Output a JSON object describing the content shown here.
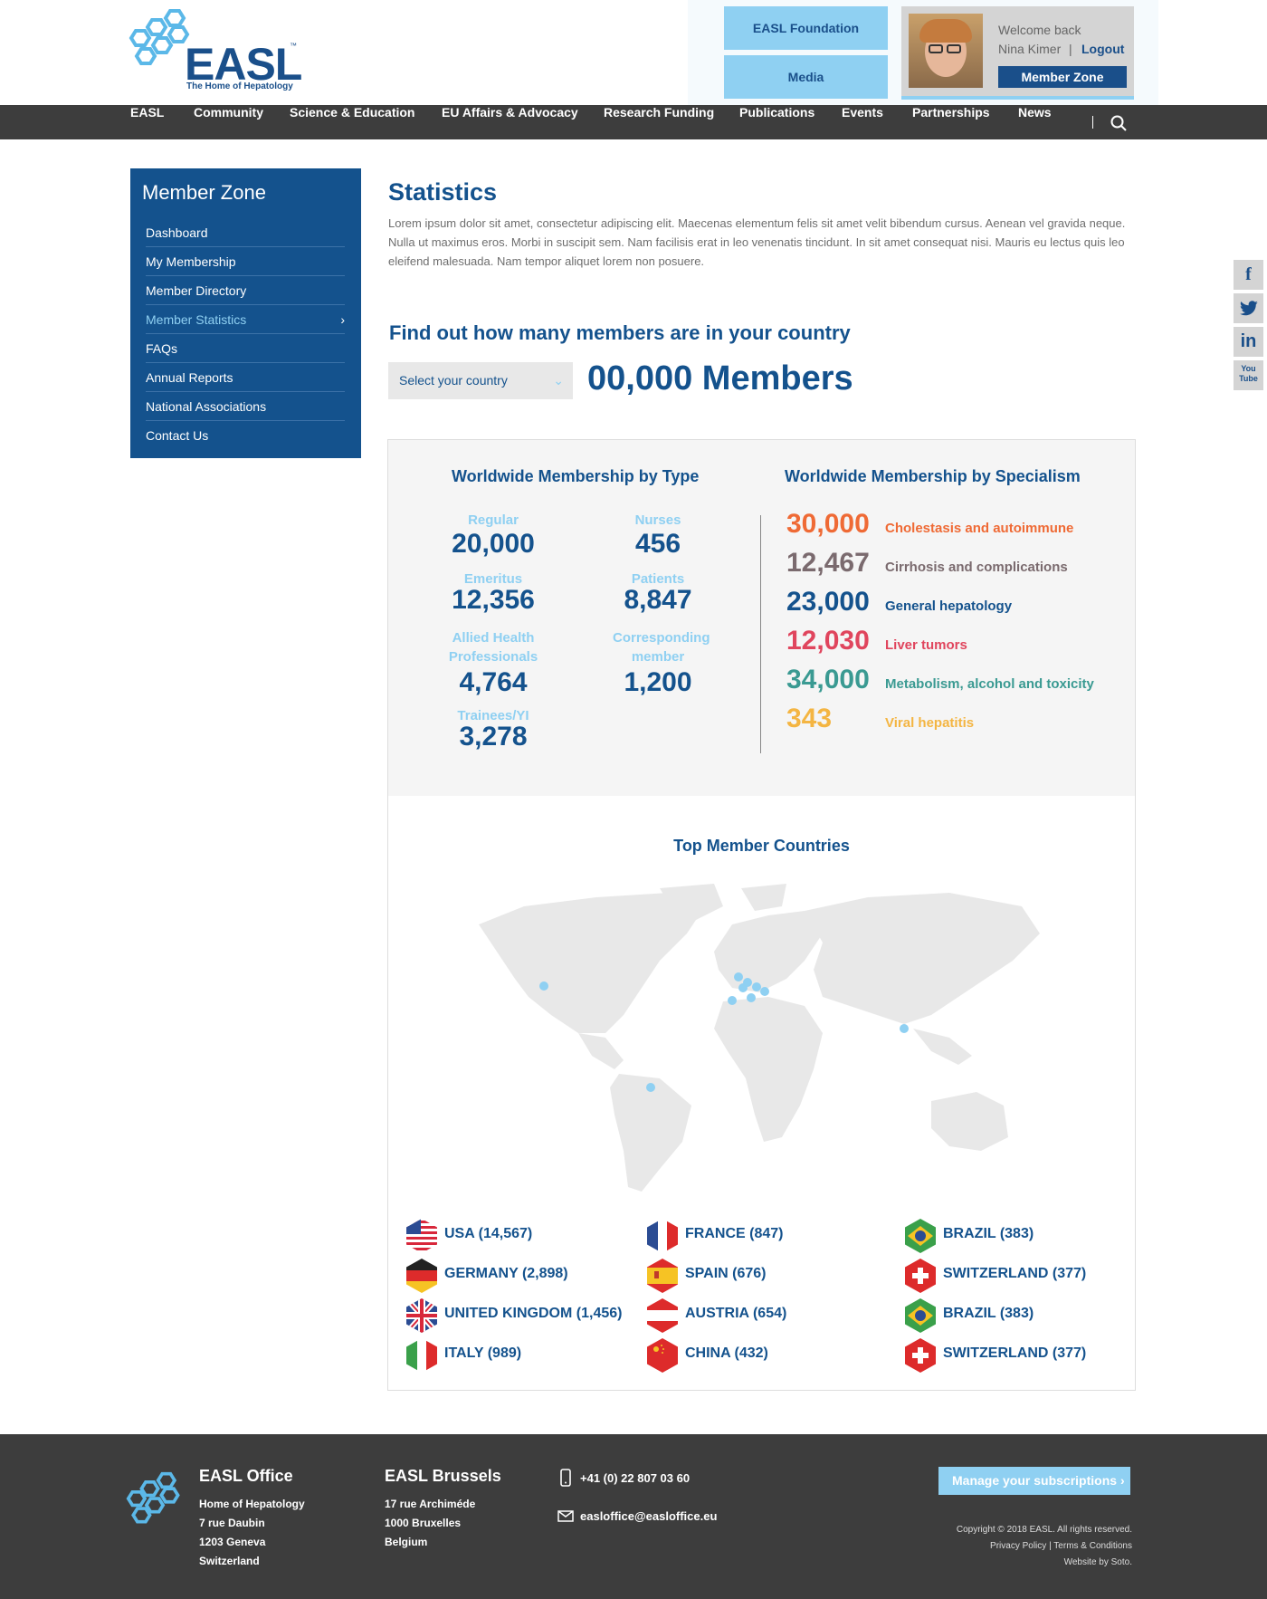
{
  "brand": {
    "name": "EASL",
    "tagline": "The Home of Hepatology",
    "tm": "™"
  },
  "header": {
    "foundation_btn": "EASL Foundation",
    "media_btn": "Media",
    "welcome": "Welcome back",
    "user_name": "Nina Kimer",
    "separator": "|",
    "logout": "Logout",
    "member_zone_btn": "Member Zone"
  },
  "nav": {
    "items": [
      "EASL",
      "Community",
      "Science & Education",
      "EU Affairs & Advocacy",
      "Research Funding",
      "Publications",
      "Events",
      "Partnerships",
      "News"
    ],
    "divider": "|"
  },
  "sidebar": {
    "title": "Member Zone",
    "items": [
      "Dashboard",
      "My Membership",
      "Member Directory",
      "Member Statistics",
      "FAQs",
      "Annual Reports",
      "National Associations",
      "Contact Us"
    ],
    "active_item": "Member Statistics"
  },
  "main": {
    "title": "Statistics",
    "intro": "Lorem ipsum dolor sit amet, consectetur adipiscing elit. Maecenas elementum felis sit amet velit bibendum cursus. Aenean vel gravida neque. Nulla ut maximus eros. Morbi in suscipit sem. Nam facilisis erat in leo venenatis tincidunt. In sit amet consequat nisi. Mauris eu lectus quis leo eleifend malesuada. Nam tempor aliquet lorem non posuere.",
    "find_heading": "Find out how many members are in your country",
    "country_select": "Select your country",
    "members_total": "00,000 Members"
  },
  "by_type": {
    "title": "Worldwide Membership by Type",
    "items": [
      {
        "label": "Regular",
        "value": "20,000"
      },
      {
        "label": "Nurses",
        "value": "456"
      },
      {
        "label": "Emeritus",
        "value": "12,356"
      },
      {
        "label": "Patients",
        "value": "8,847"
      },
      {
        "label": "Allied Health Professionals",
        "value": "4,764"
      },
      {
        "label": "Corresponding member",
        "value": "1,200"
      },
      {
        "label": "Trainees/YI",
        "value": "3,278"
      }
    ]
  },
  "by_specialism": {
    "title": "Worldwide Membership by Specialism",
    "items": [
      {
        "value": "30,000",
        "label": "Cholestasis and autoimmune",
        "color": "#ef6a35"
      },
      {
        "value": "12,467",
        "label": "Cirrhosis and complications",
        "color": "#7a6a6e"
      },
      {
        "value": "23,000",
        "label": "General hepatology",
        "color": "#14528d"
      },
      {
        "value": "12,030",
        "label": "Liver tumors",
        "color": "#e0455d"
      },
      {
        "value": "34,000",
        "label": "Metabolism, alcohol and toxicity",
        "color": "#3a9a92"
      },
      {
        "value": "343",
        "label": "Viral hepatitis",
        "color": "#f4b542"
      }
    ]
  },
  "top_countries": {
    "title": "Top Member Countries",
    "columns": [
      [
        {
          "name": "USA (14,567)",
          "flag": "usa-flag-icon"
        },
        {
          "name": "GERMANY (2,898)",
          "flag": "germany-flag-icon"
        },
        {
          "name": "UNITED KINGDOM (1,456)",
          "flag": "uk-flag-icon"
        },
        {
          "name": "ITALY (989)",
          "flag": "italy-flag-icon"
        }
      ],
      [
        {
          "name": "FRANCE (847)",
          "flag": "france-flag-icon"
        },
        {
          "name": "SPAIN (676)",
          "flag": "spain-flag-icon"
        },
        {
          "name": "AUSTRIA (654)",
          "flag": "austria-flag-icon"
        },
        {
          "name": "CHINA (432)",
          "flag": "china-flag-icon"
        }
      ],
      [
        {
          "name": "BRAZIL (383)",
          "flag": "brazil-flag-icon"
        },
        {
          "name": "SWITZERLAND (377)",
          "flag": "switzerland-flag-icon"
        },
        {
          "name": "BRAZIL (383)",
          "flag": "brazil-flag-icon"
        },
        {
          "name": "SWITZERLAND (377)",
          "flag": "switzerland-flag-icon"
        }
      ]
    ]
  },
  "social": {
    "facebook": "f",
    "twitter": "t",
    "linkedin": "in",
    "youtube": "You Tube"
  },
  "footer": {
    "office": {
      "title": "EASL Office",
      "lines": [
        "Home of Hepatology",
        "7 rue Daubin",
        "1203 Geneva",
        "Switzerland"
      ]
    },
    "brussels": {
      "title": "EASL Brussels",
      "lines": [
        "17 rue Archiméde",
        "1000 Bruxelles",
        "Belgium"
      ]
    },
    "phone": "+41 (0) 22 807 03 60",
    "email": "easloffice@easloffice.eu",
    "subscribe_btn": "Manage your subscriptions",
    "copyright": "Copyright © 2018 EASL. All rights reserved.",
    "privacy": "Privacy Policy",
    "separator": "|",
    "terms": "Terms & Conditions",
    "credit": "Website by Soto."
  },
  "colors": {
    "primary": "#14528d",
    "light_blue": "#8fd0f2",
    "dark_bar": "#3d3d3d"
  }
}
